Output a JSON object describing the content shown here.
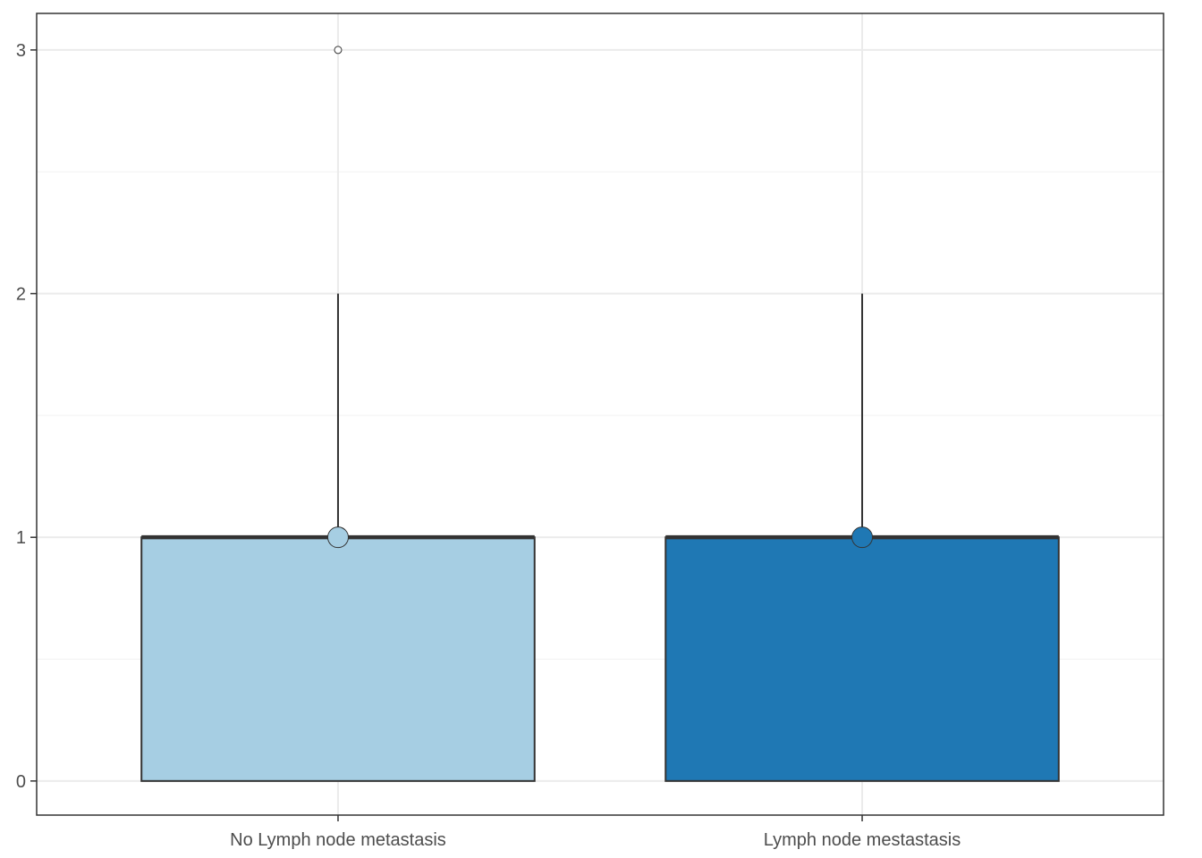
{
  "chart_data": {
    "type": "box",
    "categories": [
      "No Lymph node metastasis",
      "Lymph node mestastasis"
    ],
    "boxes": [
      {
        "category": "No Lymph node metastasis",
        "min": 0,
        "q1": 0,
        "median": 1,
        "q3": 1,
        "max": 2,
        "mean": 1,
        "outliers": [
          3
        ],
        "color": "#a6cee3"
      },
      {
        "category": "Lymph node mestastasis",
        "min": 0,
        "q1": 0,
        "median": 1,
        "q3": 1,
        "max": 2,
        "mean": 1,
        "outliers": [],
        "color": "#1f78b4"
      }
    ],
    "y_ticks": [
      0,
      1,
      2,
      3
    ],
    "y_tick_labels": [
      "0",
      "1",
      "2",
      "3"
    ],
    "ylim": [
      -0.14,
      3.15
    ],
    "title": "",
    "xlabel": "",
    "ylabel": "",
    "grid": true,
    "legend": "none"
  }
}
